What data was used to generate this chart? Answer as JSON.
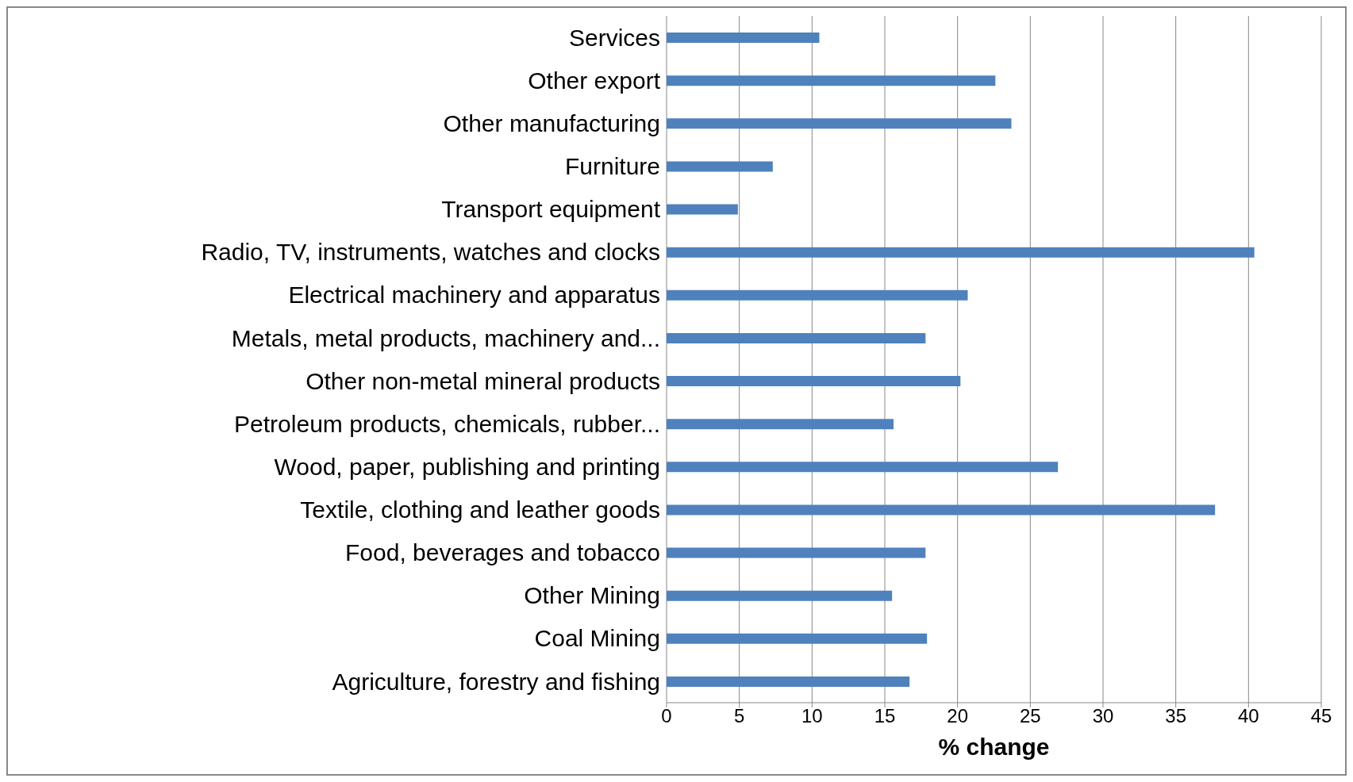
{
  "chart_data": {
    "type": "bar",
    "orientation": "horizontal",
    "xlabel": "% change",
    "categories": [
      "Services",
      "Other export",
      "Other manufacturing",
      "Furniture",
      "Transport equipment",
      "Radio, TV, instruments, watches and clocks",
      "Electrical machinery and apparatus",
      "Metals, metal products, machinery and...",
      "Other non-metal mineral products",
      "Petroleum products, chemicals, rubber...",
      "Wood, paper, publishing and printing",
      "Textile, clothing and leather goods",
      "Food, beverages and tobacco",
      "Other Mining",
      "Coal Mining",
      "Agriculture, forestry and fishing"
    ],
    "values": [
      10.5,
      22.6,
      23.7,
      7.3,
      4.9,
      40.4,
      20.7,
      17.8,
      20.2,
      15.6,
      26.9,
      37.7,
      17.8,
      15.5,
      17.9,
      16.7
    ],
    "color": "#4f81bd",
    "xlim": [
      0,
      45
    ],
    "xticks": [
      0,
      5,
      10,
      15,
      20,
      25,
      30,
      35,
      40,
      45
    ],
    "grid": "x",
    "legend": false
  }
}
